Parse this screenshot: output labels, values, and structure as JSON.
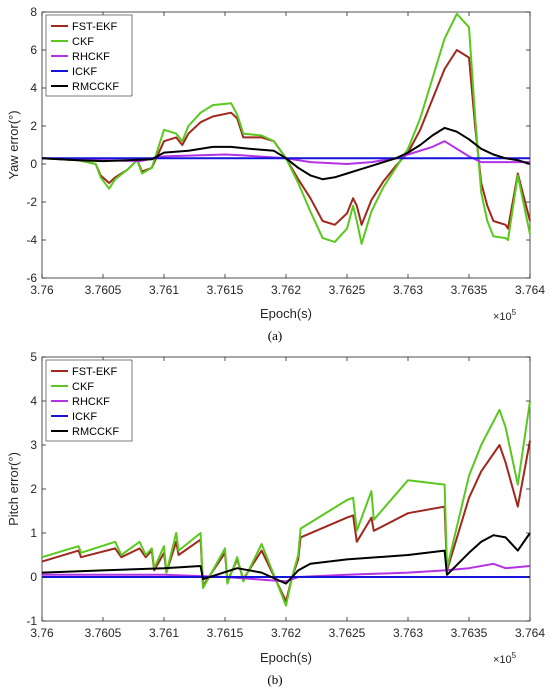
{
  "colors": {
    "FST-EKF": "#a0281e",
    "CKF": "#5ac81e",
    "RHCKF": "#b432e6",
    "ICKF": "#1414dc",
    "RMCCKF": "#000000",
    "axis": "#262626"
  },
  "chart_data": [
    {
      "id": "a",
      "type": "line",
      "caption": "(a)",
      "xlabel": "Epoch(s)",
      "ylabel": "Yaw error(°)",
      "x_multiplier": "×10",
      "x_multiplier_exp": "5",
      "xlim": [
        3.76,
        3.764
      ],
      "ylim": [
        -6,
        8
      ],
      "xticks": [
        3.76,
        3.7605,
        3.761,
        3.7615,
        3.762,
        3.7625,
        3.763,
        3.7635,
        3.764
      ],
      "xtick_labels": [
        "3.76",
        "3.7605",
        "3.761",
        "3.7615",
        "3.762",
        "3.7625",
        "3.763",
        "3.7635",
        "3.764"
      ],
      "yticks": [
        -6,
        -4,
        -2,
        0,
        2,
        4,
        6,
        8
      ],
      "ytick_labels": [
        "-6",
        "-4",
        "-2",
        "0",
        "2",
        "4",
        "6",
        "8"
      ],
      "legend_position": "top-left",
      "series": [
        {
          "name": "FST-EKF",
          "x": [
            3.76,
            3.7603,
            3.76044,
            3.76048,
            3.76055,
            3.7606,
            3.7607,
            3.76078,
            3.76082,
            3.7609,
            3.761,
            3.7611,
            3.76115,
            3.7612,
            3.7613,
            3.7614,
            3.76155,
            3.7616,
            3.76165,
            3.7618,
            3.7619,
            3.762,
            3.7621,
            3.7622,
            3.7623,
            3.7624,
            3.7625,
            3.76255,
            3.76258,
            3.76262,
            3.7627,
            3.7628,
            3.7629,
            3.763,
            3.7631,
            3.7632,
            3.7633,
            3.7634,
            3.7635,
            3.76355,
            3.7636,
            3.76365,
            3.7637,
            3.7638,
            3.76382,
            3.7639,
            3.764
          ],
          "y": [
            0.3,
            0.2,
            0.0,
            -0.6,
            -1.0,
            -0.7,
            -0.3,
            0.2,
            -0.4,
            -0.2,
            1.2,
            1.4,
            1.0,
            1.6,
            2.2,
            2.5,
            2.7,
            2.4,
            1.4,
            1.4,
            1.2,
            0.3,
            -0.8,
            -1.8,
            -3.0,
            -3.2,
            -2.6,
            -1.8,
            -2.2,
            -3.2,
            -1.9,
            -0.9,
            -0.1,
            0.6,
            1.8,
            3.4,
            5.0,
            6.0,
            5.6,
            2.0,
            -1.0,
            -2.2,
            -3.0,
            -3.2,
            -3.4,
            -0.5,
            -3.0
          ]
        },
        {
          "name": "CKF",
          "x": [
            3.76,
            3.7603,
            3.76044,
            3.76048,
            3.76055,
            3.7606,
            3.7607,
            3.76078,
            3.76082,
            3.7609,
            3.761,
            3.7611,
            3.76115,
            3.7612,
            3.7613,
            3.7614,
            3.76155,
            3.7616,
            3.76165,
            3.7618,
            3.7619,
            3.762,
            3.7621,
            3.7622,
            3.7623,
            3.7624,
            3.7625,
            3.76255,
            3.76258,
            3.76262,
            3.7627,
            3.7628,
            3.7629,
            3.763,
            3.7631,
            3.7632,
            3.7633,
            3.7634,
            3.7635,
            3.76355,
            3.7636,
            3.76365,
            3.7637,
            3.7638,
            3.76382,
            3.7639,
            3.764
          ],
          "y": [
            0.3,
            0.2,
            0.0,
            -0.7,
            -1.3,
            -0.8,
            -0.3,
            0.2,
            -0.5,
            -0.2,
            1.8,
            1.6,
            1.2,
            2.0,
            2.7,
            3.1,
            3.2,
            2.6,
            1.6,
            1.5,
            1.2,
            0.3,
            -1.0,
            -2.5,
            -3.9,
            -4.1,
            -3.4,
            -2.2,
            -3.0,
            -4.2,
            -2.5,
            -1.2,
            -0.2,
            0.8,
            2.4,
            4.5,
            6.6,
            7.9,
            7.2,
            2.5,
            -1.5,
            -3.0,
            -3.8,
            -3.9,
            -4.0,
            -0.6,
            -3.7
          ]
        },
        {
          "name": "RHCKF",
          "x": [
            3.76,
            3.7605,
            3.7608,
            3.761,
            3.7615,
            3.76165,
            3.762,
            3.7622,
            3.7625,
            3.7627,
            3.7629,
            3.763,
            3.7632,
            3.7633,
            3.7634,
            3.7635,
            3.7636,
            3.7637,
            3.764
          ],
          "y": [
            0.3,
            0.2,
            0.15,
            0.4,
            0.5,
            0.45,
            0.3,
            0.1,
            0.0,
            0.1,
            0.3,
            0.5,
            0.9,
            1.2,
            0.8,
            0.4,
            0.1,
            0.1,
            0.1
          ]
        },
        {
          "name": "ICKF",
          "x": [
            3.76,
            3.761,
            3.762,
            3.763,
            3.764
          ],
          "y": [
            0.3,
            0.3,
            0.3,
            0.3,
            0.3
          ]
        },
        {
          "name": "RMCCKF",
          "x": [
            3.76,
            3.7603,
            3.7605,
            3.7607,
            3.7609,
            3.761,
            3.7612,
            3.7614,
            3.76155,
            3.7617,
            3.7619,
            3.762,
            3.7621,
            3.7622,
            3.7623,
            3.7624,
            3.7625,
            3.7626,
            3.7627,
            3.7628,
            3.7629,
            3.763,
            3.7631,
            3.7632,
            3.7633,
            3.7634,
            3.7635,
            3.7636,
            3.7637,
            3.7638,
            3.7639,
            3.764
          ],
          "y": [
            0.3,
            0.2,
            0.15,
            0.2,
            0.25,
            0.6,
            0.7,
            0.9,
            0.9,
            0.8,
            0.7,
            0.3,
            -0.2,
            -0.6,
            -0.8,
            -0.7,
            -0.5,
            -0.3,
            -0.1,
            0.1,
            0.3,
            0.6,
            1.0,
            1.5,
            1.9,
            1.7,
            1.3,
            0.8,
            0.5,
            0.3,
            0.2,
            0.0
          ]
        }
      ]
    },
    {
      "id": "b",
      "type": "line",
      "caption": "(b)",
      "xlabel": "Epoch(s)",
      "ylabel": "Pitch error(°)",
      "x_multiplier": "×10",
      "x_multiplier_exp": "5",
      "xlim": [
        3.76,
        3.764
      ],
      "ylim": [
        -1,
        5
      ],
      "xticks": [
        3.76,
        3.7605,
        3.761,
        3.7615,
        3.762,
        3.7625,
        3.763,
        3.7635,
        3.764
      ],
      "xtick_labels": [
        "3.76",
        "3.7605",
        "3.761",
        "3.7615",
        "3.762",
        "3.7625",
        "3.763",
        "3.7635",
        "3.764"
      ],
      "yticks": [
        -1,
        0,
        1,
        2,
        3,
        4,
        5
      ],
      "ytick_labels": [
        "-1",
        "0",
        "1",
        "2",
        "3",
        "4",
        "5"
      ],
      "legend_position": "top-left",
      "series": [
        {
          "name": "FST-EKF",
          "x": [
            3.76,
            3.7603,
            3.76032,
            3.7606,
            3.76065,
            3.7608,
            3.76085,
            3.7609,
            3.76092,
            3.761,
            3.76102,
            3.7611,
            3.76112,
            3.7613,
            3.76132,
            3.7615,
            3.76152,
            3.7616,
            3.76165,
            3.7618,
            3.762,
            3.76205,
            3.7621,
            3.76212,
            3.7625,
            3.76255,
            3.76258,
            3.7627,
            3.76272,
            3.763,
            3.7633,
            3.76332,
            3.7635,
            3.7636,
            3.76375,
            3.7638,
            3.7639,
            3.764
          ],
          "y": [
            0.35,
            0.6,
            0.45,
            0.65,
            0.45,
            0.65,
            0.45,
            0.6,
            0.15,
            0.55,
            0.1,
            0.8,
            0.5,
            0.85,
            -0.2,
            0.55,
            -0.1,
            0.4,
            -0.05,
            0.6,
            -0.55,
            0.0,
            0.4,
            0.9,
            1.35,
            1.4,
            0.8,
            1.35,
            1.05,
            1.45,
            1.6,
            0.15,
            1.8,
            2.4,
            3.0,
            2.6,
            1.6,
            3.1
          ]
        },
        {
          "name": "CKF",
          "x": [
            3.76,
            3.7603,
            3.76032,
            3.7606,
            3.76065,
            3.7608,
            3.76085,
            3.7609,
            3.76092,
            3.761,
            3.76102,
            3.7611,
            3.76112,
            3.7613,
            3.76132,
            3.7615,
            3.76152,
            3.7616,
            3.76165,
            3.7618,
            3.762,
            3.76205,
            3.7621,
            3.76212,
            3.7625,
            3.76255,
            3.76258,
            3.7627,
            3.76272,
            3.763,
            3.7633,
            3.76332,
            3.7635,
            3.7636,
            3.76375,
            3.7638,
            3.7639,
            3.764
          ],
          "y": [
            0.45,
            0.7,
            0.55,
            0.8,
            0.5,
            0.8,
            0.5,
            0.65,
            0.2,
            0.7,
            0.1,
            1.0,
            0.6,
            1.0,
            -0.25,
            0.65,
            -0.15,
            0.45,
            -0.1,
            0.75,
            -0.65,
            0.0,
            0.5,
            1.1,
            1.75,
            1.8,
            1.05,
            1.95,
            1.3,
            2.2,
            2.1,
            0.2,
            2.3,
            3.0,
            3.8,
            3.4,
            2.1,
            4.0
          ]
        },
        {
          "name": "RHCKF",
          "x": [
            3.76,
            3.761,
            3.7615,
            3.762,
            3.7621,
            3.7625,
            3.763,
            3.7633,
            3.7635,
            3.7637,
            3.7638,
            3.764
          ],
          "y": [
            0.05,
            0.05,
            0.0,
            -0.1,
            0.0,
            0.05,
            0.1,
            0.15,
            0.2,
            0.3,
            0.2,
            0.25
          ]
        },
        {
          "name": "ICKF",
          "x": [
            3.76,
            3.761,
            3.762,
            3.763,
            3.764
          ],
          "y": [
            0.0,
            0.0,
            0.0,
            0.0,
            0.0
          ]
        },
        {
          "name": "RMCCKF",
          "x": [
            3.76,
            3.7605,
            3.761,
            3.7613,
            3.76132,
            3.7616,
            3.7618,
            3.762,
            3.76205,
            3.7621,
            3.7622,
            3.7625,
            3.763,
            3.7633,
            3.76332,
            3.7635,
            3.7636,
            3.7637,
            3.7638,
            3.7639,
            3.764
          ],
          "y": [
            0.1,
            0.15,
            0.2,
            0.25,
            -0.05,
            0.2,
            0.1,
            -0.15,
            0.0,
            0.15,
            0.3,
            0.4,
            0.5,
            0.6,
            0.05,
            0.55,
            0.8,
            0.95,
            0.9,
            0.6,
            1.0
          ]
        }
      ]
    }
  ]
}
